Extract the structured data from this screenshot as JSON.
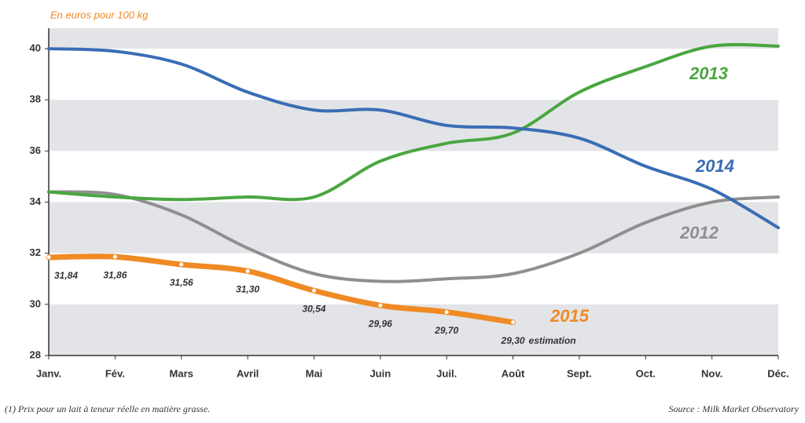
{
  "chart_data": {
    "type": "line",
    "y_label": "En euros pour 100 kg",
    "categories": [
      "Janv.",
      "Fév.",
      "Mars",
      "Avril",
      "Mai",
      "Juin",
      "Juil.",
      "Août",
      "Sept.",
      "Oct.",
      "Nov.",
      "Déc."
    ],
    "ylim": [
      28,
      40.8
    ],
    "yticks": [
      28,
      30,
      32,
      34,
      36,
      38,
      40
    ],
    "series": [
      {
        "name": "2012",
        "color": "#8f8f8f",
        "values": [
          34.4,
          34.3,
          33.5,
          32.2,
          31.2,
          30.9,
          31.0,
          31.2,
          32.0,
          33.2,
          34.0,
          34.2
        ]
      },
      {
        "name": "2013",
        "color": "#4aa640",
        "values": [
          34.4,
          34.2,
          34.1,
          34.2,
          34.2,
          35.6,
          36.3,
          36.7,
          38.3,
          39.3,
          40.1,
          40.1
        ]
      },
      {
        "name": "2014",
        "color": "#3a6db5",
        "values": [
          40.0,
          39.9,
          39.4,
          38.3,
          37.6,
          37.6,
          37.0,
          36.9,
          36.5,
          35.4,
          34.5,
          33.0
        ]
      },
      {
        "name": "2015",
        "color": "#f08a24",
        "values": [
          31.84,
          31.86,
          31.56,
          31.3,
          30.54,
          29.96,
          29.7,
          29.3,
          null,
          null,
          null,
          null
        ],
        "value_labels": [
          "31,84",
          "31,86",
          "31,56",
          "31,30",
          "30,54",
          "29,96",
          "29,70",
          "29,30",
          null,
          null,
          null,
          null
        ]
      }
    ],
    "annotation": "estimation",
    "footnote": "(1) Prix pour un lait à teneur réelle en matière grasse.",
    "source": "Source : Milk Market Observatory"
  }
}
